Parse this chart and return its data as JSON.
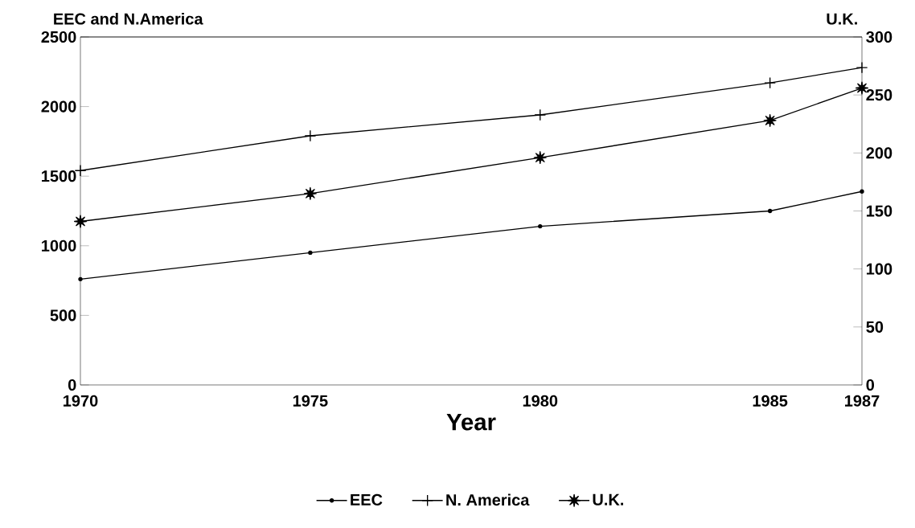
{
  "chart_data": {
    "type": "line",
    "xlabel": "Year",
    "ylabel": "EEC and N.America",
    "y2label": "U.K.",
    "x": [
      1970,
      1975,
      1980,
      1985,
      1987
    ],
    "xlim": [
      1970,
      1987
    ],
    "xticks": [
      1970,
      1975,
      1980,
      1985,
      1987
    ],
    "ylim": [
      0,
      2500
    ],
    "yticks": [
      0,
      500,
      1000,
      1500,
      2000,
      2500
    ],
    "y2lim": [
      0,
      300
    ],
    "y2ticks": [
      0,
      50,
      100,
      150,
      200,
      250,
      300
    ],
    "legend": "bottom",
    "grid": false,
    "line_style": "solid",
    "series": [
      {
        "name": "EEC",
        "color": "#000000",
        "marker": "circle",
        "values": [
          760,
          950,
          1140,
          1250,
          1390
        ]
      },
      {
        "name": "N. America",
        "color": "#000000",
        "marker": "cross",
        "values": [
          1540,
          1790,
          1940,
          2170,
          2280
        ]
      },
      {
        "name": "U.K.",
        "color": "#000000",
        "marker": "star",
        "axis": "y2",
        "values": [
          141,
          165,
          196,
          228,
          256
        ]
      }
    ]
  }
}
